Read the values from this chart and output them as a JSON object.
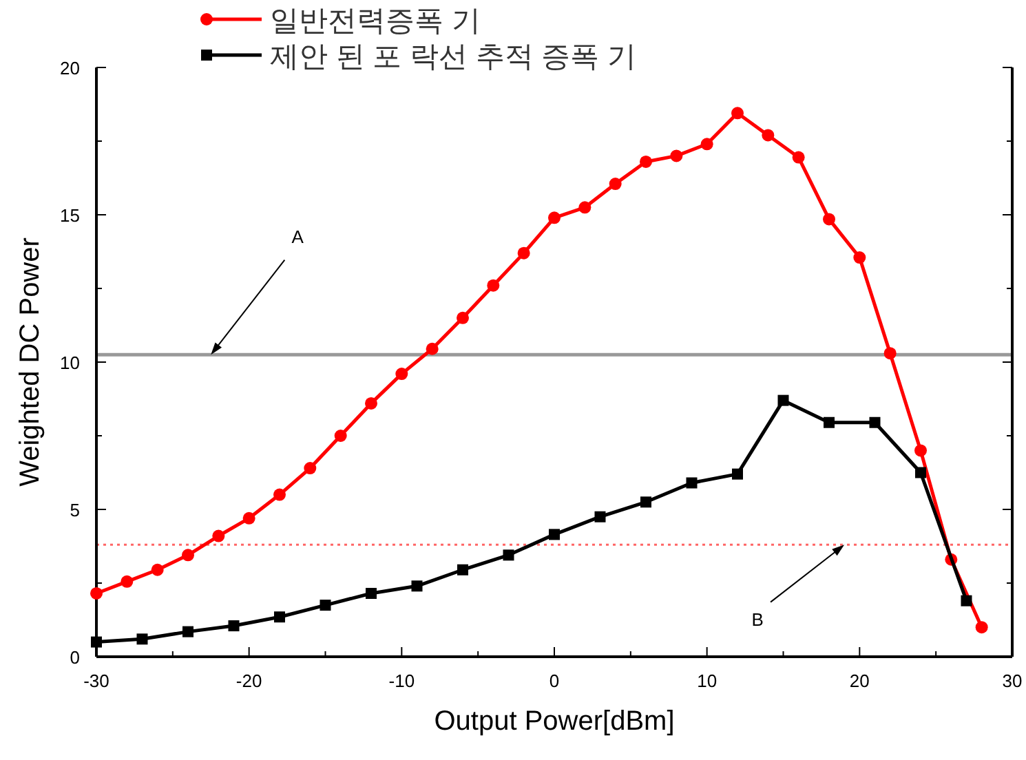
{
  "chart_data": {
    "type": "line",
    "xlabel": "Output Power[dBm]",
    "ylabel": "Weighted DC Power",
    "xlim": [
      -30,
      30
    ],
    "ylim": [
      0,
      20
    ],
    "xticks": [
      -30,
      {
        "value": -25,
        "label": null
      },
      -20,
      {
        "value": -15,
        "label": null
      },
      -10,
      {
        "value": -5,
        "label": null
      },
      0,
      {
        "value": 5,
        "label": null
      },
      10,
      {
        "value": 15,
        "label": null
      },
      20,
      {
        "value": 25,
        "label": null
      },
      30
    ],
    "yticks": [
      0,
      {
        "value": 2.5,
        "label": null
      },
      5,
      {
        "value": 7.5,
        "label": null
      },
      10,
      {
        "value": 12.5,
        "label": null
      },
      15,
      {
        "value": 17.5,
        "label": null
      },
      20
    ],
    "legend": "top",
    "grid": false,
    "line_style": "solid",
    "series": [
      {
        "name": "일반전력증폭 기",
        "color": "#ff0000",
        "marker": "circle",
        "x": [
          -30,
          -28,
          -26,
          -24,
          -22,
          -20,
          -18,
          -16,
          -14,
          -12,
          -10,
          -8,
          -6,
          -4,
          -2,
          0,
          2,
          4,
          6,
          8,
          10,
          12,
          14,
          16,
          18,
          20,
          22,
          24,
          26,
          28
        ],
        "values": [
          2.15,
          2.55,
          2.95,
          3.45,
          4.1,
          4.7,
          5.5,
          6.4,
          7.5,
          8.6,
          9.6,
          10.45,
          11.5,
          12.6,
          13.7,
          14.9,
          15.25,
          16.05,
          16.8,
          17.0,
          17.4,
          18.45,
          17.7,
          16.95,
          14.85,
          13.55,
          10.3,
          7.0,
          3.3,
          1.0
        ]
      },
      {
        "name": "제안 된 포 락선 추적 증폭 기",
        "color": "#000000",
        "marker": "square",
        "x": [
          -30,
          -27,
          -24,
          -21,
          -18,
          -15,
          -12,
          -9,
          -6,
          -3,
          0,
          3,
          6,
          9,
          12,
          15,
          18,
          21,
          24,
          27
        ],
        "values": [
          0.5,
          0.6,
          0.85,
          1.05,
          1.35,
          1.75,
          2.15,
          2.4,
          2.95,
          3.45,
          4.15,
          4.75,
          5.25,
          5.9,
          6.2,
          8.7,
          7.95,
          7.95,
          6.25,
          1.9
        ]
      }
    ],
    "ref_lines": [
      {
        "axis": "y",
        "value": 10.25,
        "color": "#999999",
        "line_style": "solid"
      },
      {
        "axis": "y",
        "value": 3.8,
        "color": "#ff6666",
        "line_style": "dotted"
      }
    ],
    "annotations": [
      {
        "text": "A",
        "x": -22.5,
        "y": 10.25
      },
      {
        "text": "B",
        "x": 19,
        "y": 3.8
      }
    ]
  }
}
